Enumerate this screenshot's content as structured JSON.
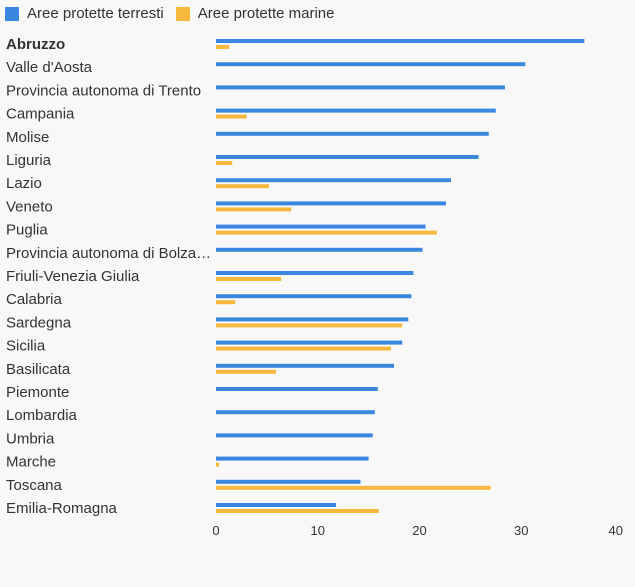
{
  "chart_data": {
    "type": "bar",
    "orientation": "horizontal",
    "categories": [
      "Abruzzo",
      "Valle d'Aosta",
      "Provincia autonoma di Trento",
      "Campania",
      "Molise",
      "Liguria",
      "Lazio",
      "Veneto",
      "Puglia",
      "Provincia autonoma di Bolza…",
      "Friuli-Venezia Giulia",
      "Calabria",
      "Sardegna",
      "Sicilia",
      "Basilicata",
      "Piemonte",
      "Lombardia",
      "Umbria",
      "Marche",
      "Toscana",
      "Emilia-Romagna"
    ],
    "highlighted_category": "Abruzzo",
    "series": [
      {
        "name": "Aree protette terresti",
        "color": "#3a87e0",
        "values": [
          36.2,
          30.4,
          28.4,
          27.5,
          26.8,
          25.8,
          23.1,
          22.6,
          20.6,
          20.3,
          19.4,
          19.2,
          18.9,
          18.3,
          17.5,
          15.9,
          15.6,
          15.4,
          15.0,
          14.2,
          11.8
        ]
      },
      {
        "name": "Aree protette marine",
        "color": "#f7b93d",
        "values": [
          1.3,
          null,
          null,
          3.0,
          null,
          1.6,
          5.2,
          7.4,
          21.7,
          null,
          6.4,
          1.9,
          18.3,
          17.2,
          5.9,
          null,
          null,
          null,
          0.3,
          27.0,
          16.0
        ]
      }
    ],
    "xlim": [
      0,
      40
    ],
    "xticks": [
      "0",
      "10",
      "20",
      "30",
      "40"
    ],
    "legend_position": "top-left",
    "grid": false
  }
}
